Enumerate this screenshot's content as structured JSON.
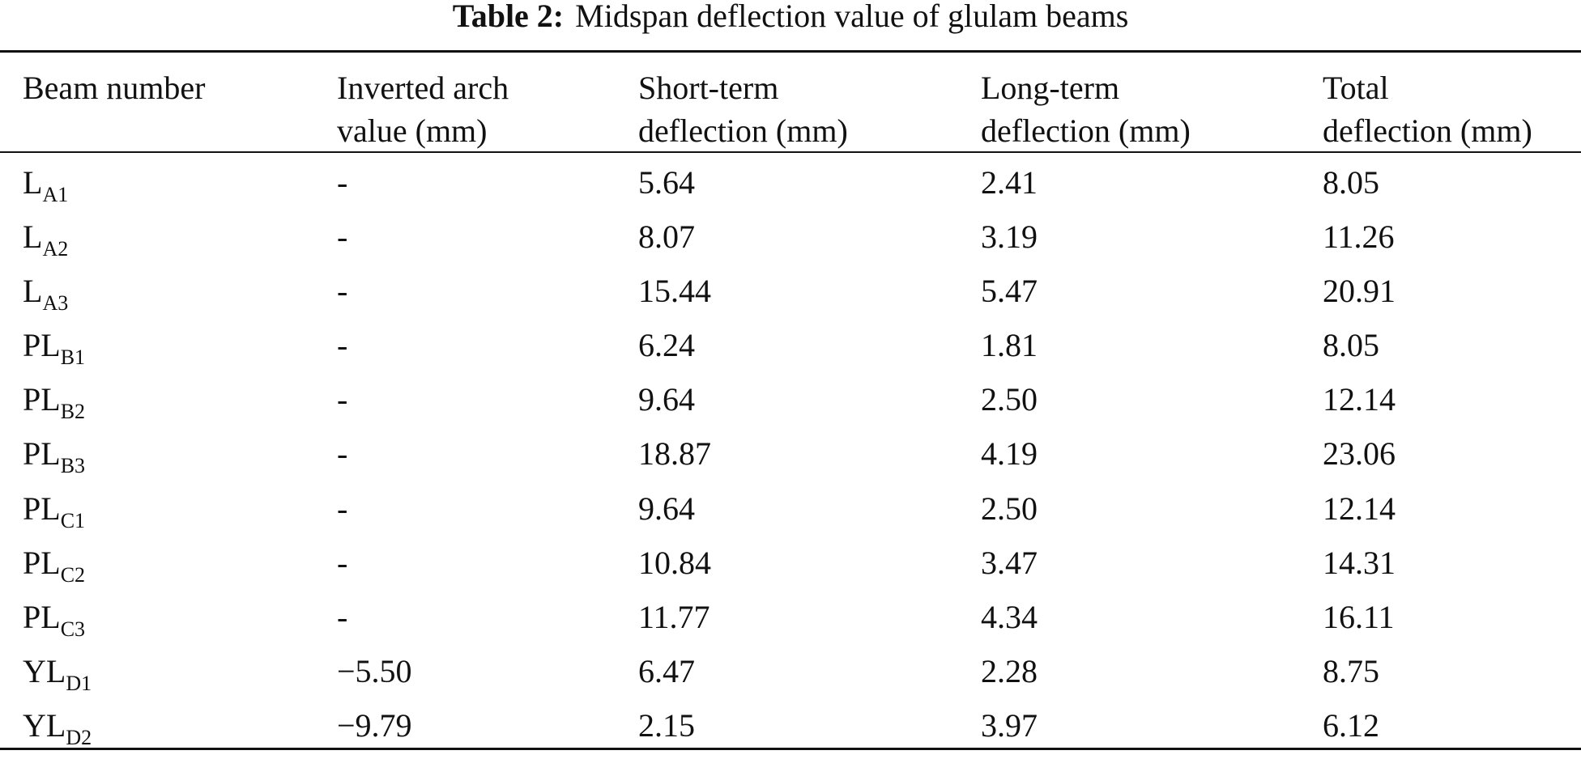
{
  "caption": {
    "label": "Table 2:",
    "text": "Midspan deflection value of glulam beams"
  },
  "headers": [
    [
      "Beam number"
    ],
    [
      "Inverted arch",
      "value (mm)"
    ],
    [
      "Short-term",
      "deflection (mm)"
    ],
    [
      "Long-term",
      "deflection (mm)"
    ],
    [
      "Total",
      "deflection (mm)"
    ]
  ],
  "rows": [
    {
      "beam": "L",
      "sub": "A1",
      "arch": "-",
      "short": "5.64",
      "long": "2.41",
      "total": "8.05"
    },
    {
      "beam": "L",
      "sub": "A2",
      "arch": "-",
      "short": "8.07",
      "long": "3.19",
      "total": "11.26"
    },
    {
      "beam": "L",
      "sub": "A3",
      "arch": "-",
      "short": "15.44",
      "long": "5.47",
      "total": "20.91"
    },
    {
      "beam": "PL",
      "sub": "B1",
      "arch": "-",
      "short": "6.24",
      "long": "1.81",
      "total": "8.05"
    },
    {
      "beam": "PL",
      "sub": "B2",
      "arch": "-",
      "short": "9.64",
      "long": "2.50",
      "total": "12.14"
    },
    {
      "beam": "PL",
      "sub": "B3",
      "arch": "-",
      "short": "18.87",
      "long": "4.19",
      "total": "23.06"
    },
    {
      "beam": "PL",
      "sub": "C1",
      "arch": "-",
      "short": "9.64",
      "long": "2.50",
      "total": "12.14"
    },
    {
      "beam": "PL",
      "sub": "C2",
      "arch": "-",
      "short": "10.84",
      "long": "3.47",
      "total": "14.31"
    },
    {
      "beam": "PL",
      "sub": "C3",
      "arch": "-",
      "short": "11.77",
      "long": "4.34",
      "total": "16.11"
    },
    {
      "beam": "YL",
      "sub": "D1",
      "arch": "−5.50",
      "short": "6.47",
      "long": "2.28",
      "total": "8.75"
    },
    {
      "beam": "YL",
      "sub": "D2",
      "arch": "−9.79",
      "short": "2.15",
      "long": "3.97",
      "total": "6.12"
    }
  ]
}
